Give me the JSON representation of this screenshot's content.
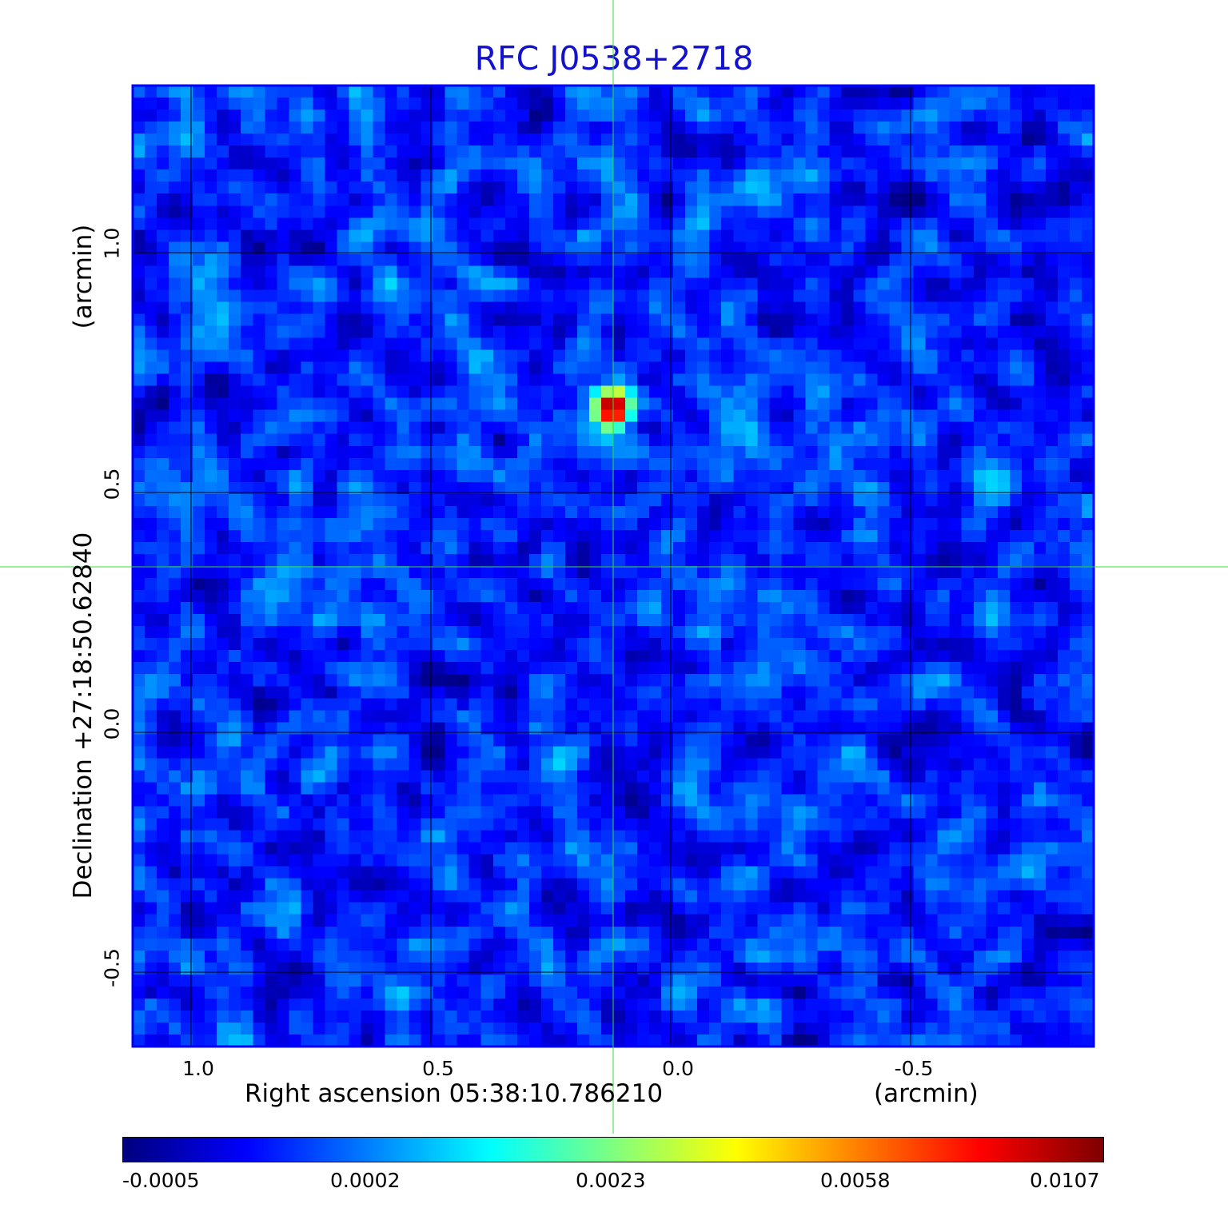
{
  "title": "RFC J0538+2718",
  "map": {
    "x_ticks": [
      "1.0",
      "0.5",
      "0.0",
      "-0.5"
    ],
    "y_ticks": [
      "1.0",
      "0.5",
      "0.0",
      "-0.5"
    ],
    "x_label": "Right ascension  05:38:10.786210",
    "x_unit": "(arcmin)",
    "y_label": "Declination  +27:18:50.62840",
    "y_unit": "(arcmin)",
    "colormap": "jet",
    "frame_color": "#0000ff",
    "grid_color": "#000000",
    "crosshair_color": "#33dd33"
  },
  "colorbar": {
    "tick_labels": [
      "-0.0005",
      "0.0002",
      "0.0023",
      "0.0058",
      "0.0107"
    ]
  }
}
